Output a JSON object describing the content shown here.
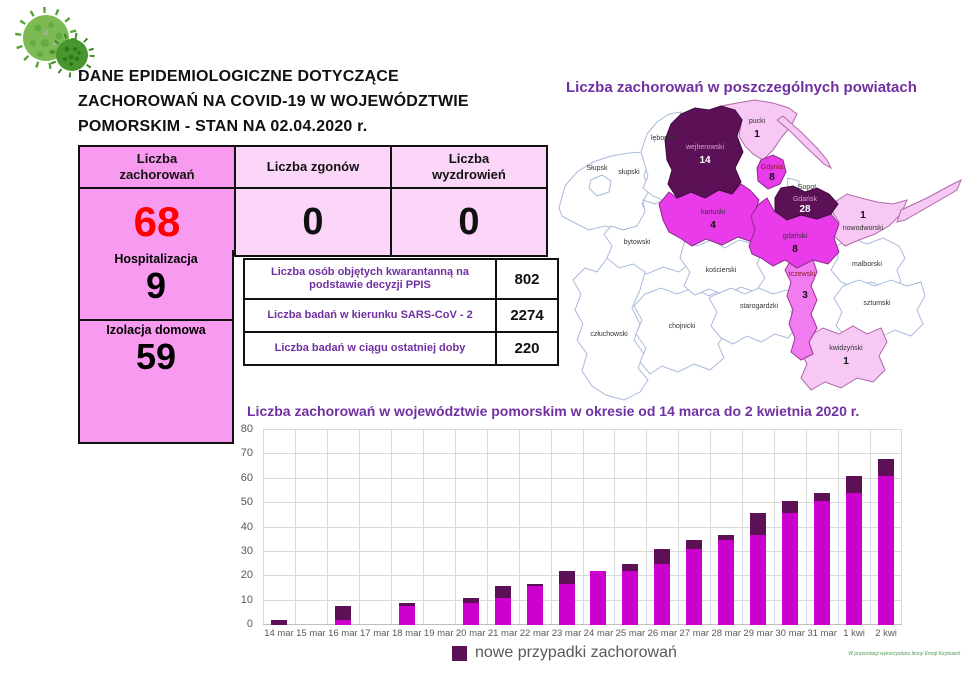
{
  "header": {
    "title": "DANE EPIDEMIOLOGICZNE DOTYCZĄCE\nZACHOROWAŃ NA COVID-19 W WOJEWÓDZTWIE\nPOMORSKIM - STAN NA 02.04.2020 r."
  },
  "stats": {
    "cases": {
      "label": "Liczba\nzachorowań",
      "value": "68"
    },
    "deaths": {
      "label": "Liczba zgonów",
      "value": "0"
    },
    "recovered": {
      "label": "Liczba\nwyzdrowień",
      "value": "0"
    },
    "hospitalized": {
      "label": "Hospitalizacja",
      "value": "9"
    },
    "home_isolation": {
      "label": "Izolacja domowa",
      "value": "59"
    }
  },
  "info_table": {
    "rows": [
      {
        "label": "Liczba osób objętych kwarantanną na podstawie decyzji PPIS",
        "value": "802"
      },
      {
        "label": "Liczba badań w kierunku SARS-CoV - 2",
        "value": "2274"
      },
      {
        "label": "Liczba badań w ciągu ostatniej doby",
        "value": "220"
      }
    ]
  },
  "map": {
    "title": "Liczba zachorowań w poszczególnych powiatach",
    "counties": [
      {
        "name": "słupski",
        "value": null
      },
      {
        "name": "Słupsk",
        "value": null
      },
      {
        "name": "lęborski",
        "value": null
      },
      {
        "name": "bytowski",
        "value": null
      },
      {
        "name": "człuchowski",
        "value": null
      },
      {
        "name": "chojnicki",
        "value": null
      },
      {
        "name": "kościerski",
        "value": null
      },
      {
        "name": "starogardzki",
        "value": null
      },
      {
        "name": "malborski",
        "value": null
      },
      {
        "name": "sztumski",
        "value": null
      },
      {
        "name": "Sopot",
        "value": null
      },
      {
        "name": "pucki",
        "value": "1"
      },
      {
        "name": "wejherowski",
        "value": "14"
      },
      {
        "name": "Gdynia",
        "value": "8"
      },
      {
        "name": "Gdańsk",
        "value": "28"
      },
      {
        "name": "kartuski",
        "value": "4"
      },
      {
        "name": "gdański",
        "value": "8"
      },
      {
        "name": "nowodworski",
        "value": "1"
      },
      {
        "name": "tczewski",
        "value": "3"
      },
      {
        "name": "kwidzyński",
        "value": "1"
      }
    ]
  },
  "chart_data": {
    "type": "bar",
    "subtype": "stacked",
    "title": "Liczba zachorowań w województwie pomorskim w okresie od 14 marca do 2 kwietnia 2020 r.",
    "categories": [
      "14 mar",
      "15 mar",
      "16 mar",
      "17 mar",
      "18 mar",
      "19 mar",
      "20 mar",
      "21 mar",
      "22 mar",
      "23 mar",
      "24 mar",
      "25 mar",
      "26 mar",
      "27 mar",
      "28 mar",
      "29 mar",
      "30 mar",
      "31 mar",
      "1 kwi",
      "2 kwi"
    ],
    "series": [
      {
        "legend_label": null,
        "color": "#CC00CC",
        "values": [
          0,
          0,
          2,
          0,
          8,
          0,
          9,
          11,
          16,
          17,
          22,
          22,
          25,
          31,
          35,
          37,
          46,
          51,
          54,
          61
        ]
      },
      {
        "legend_label": "nowe przypadki zachorowań",
        "color": "#5C1157",
        "values": [
          2,
          0,
          6,
          0,
          1,
          0,
          2,
          5,
          1,
          5,
          0,
          3,
          6,
          4,
          2,
          9,
          5,
          3,
          7,
          7
        ]
      }
    ],
    "totals": [
      2,
      0,
      8,
      0,
      9,
      0,
      11,
      16,
      17,
      22,
      22,
      25,
      31,
      35,
      37,
      46,
      51,
      54,
      61,
      68
    ],
    "ylim": [
      0,
      80
    ],
    "yticks": [
      0,
      10,
      20,
      30,
      40,
      50,
      60,
      70,
      80
    ],
    "grid": true,
    "legend_position": "bottom"
  },
  "footnote": "W prezentacji wykorzystano ikony Emoji Keyboard",
  "colors": {
    "accent_purple": "#7030A0",
    "stat_pink_dark": "#F89AEF",
    "stat_pink_light": "#FBD6F8",
    "cases_red": "#FF0000",
    "map_dark": "#5C1157",
    "map_magenta": "#E93BE9",
    "map_orchid": "#F07CF0",
    "map_light_pink": "#F8C8F4",
    "bar_magenta": "#CC00CC",
    "bar_dark": "#5C1157"
  }
}
